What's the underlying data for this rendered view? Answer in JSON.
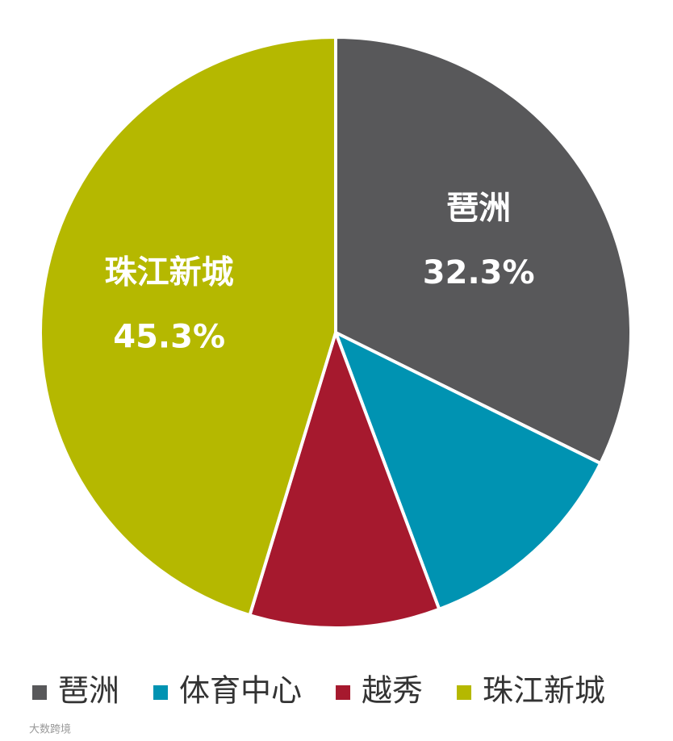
{
  "chart_data": {
    "type": "pie",
    "categories": [
      "琶洲",
      "体育中心",
      "越秀",
      "珠江新城"
    ],
    "values": [
      32.3,
      12.0,
      10.4,
      45.3
    ],
    "value_labels": [
      "32.3%",
      null,
      null,
      "45.3%"
    ],
    "colors": [
      "#58585a",
      "#0093b2",
      "#a6192e",
      "#b5b800"
    ],
    "legend": "bottom"
  },
  "watermark": "大数跨境"
}
